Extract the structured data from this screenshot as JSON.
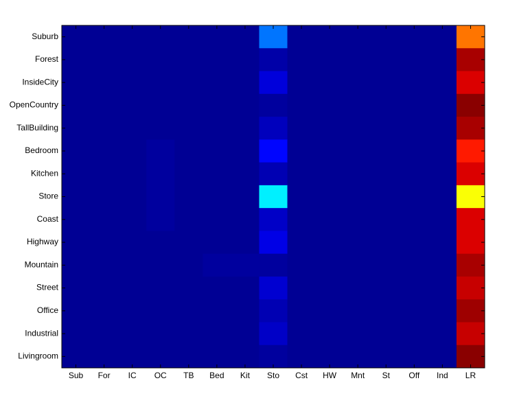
{
  "chart_data": {
    "type": "heatmap",
    "colormap": "jet",
    "clim": [
      0,
      1
    ],
    "x_categories": [
      "Sub",
      "For",
      "IC",
      "OC",
      "TB",
      "Bed",
      "Kit",
      "Sto",
      "Cst",
      "HW",
      "Mnt",
      "St",
      "Off",
      "Ind",
      "LR"
    ],
    "y_categories": [
      "Suburb",
      "Forest",
      "InsideCity",
      "OpenCountry",
      "TallBuilding",
      "Bedroom",
      "Kitchen",
      "Store",
      "Coast",
      "Highway",
      "Mountain",
      "Street",
      "Office",
      "Industrial",
      "Livingroom"
    ],
    "values": [
      [
        0.02,
        0.02,
        0.02,
        0.02,
        0.02,
        0.02,
        0.02,
        0.24,
        0.02,
        0.02,
        0.02,
        0.02,
        0.02,
        0.02,
        0.76
      ],
      [
        0.02,
        0.02,
        0.02,
        0.02,
        0.02,
        0.02,
        0.02,
        0.04,
        0.02,
        0.02,
        0.02,
        0.02,
        0.02,
        0.02,
        0.96
      ],
      [
        0.02,
        0.02,
        0.02,
        0.02,
        0.02,
        0.02,
        0.02,
        0.09,
        0.02,
        0.02,
        0.02,
        0.02,
        0.02,
        0.02,
        0.91
      ],
      [
        0.02,
        0.02,
        0.02,
        0.02,
        0.02,
        0.02,
        0.02,
        0.03,
        0.02,
        0.02,
        0.02,
        0.02,
        0.02,
        0.02,
        0.99
      ],
      [
        0.02,
        0.02,
        0.02,
        0.02,
        0.02,
        0.02,
        0.02,
        0.06,
        0.02,
        0.02,
        0.02,
        0.02,
        0.02,
        0.02,
        0.96
      ],
      [
        0.02,
        0.02,
        0.02,
        0.03,
        0.02,
        0.02,
        0.02,
        0.13,
        0.02,
        0.02,
        0.02,
        0.02,
        0.02,
        0.02,
        0.85
      ],
      [
        0.02,
        0.02,
        0.02,
        0.03,
        0.02,
        0.02,
        0.02,
        0.05,
        0.02,
        0.02,
        0.02,
        0.02,
        0.02,
        0.02,
        0.91
      ],
      [
        0.02,
        0.02,
        0.02,
        0.03,
        0.02,
        0.02,
        0.02,
        0.36,
        0.02,
        0.02,
        0.02,
        0.02,
        0.02,
        0.02,
        0.62
      ],
      [
        0.02,
        0.02,
        0.02,
        0.03,
        0.02,
        0.02,
        0.02,
        0.07,
        0.02,
        0.02,
        0.02,
        0.02,
        0.02,
        0.02,
        0.91
      ],
      [
        0.02,
        0.02,
        0.02,
        0.02,
        0.02,
        0.02,
        0.02,
        0.1,
        0.02,
        0.02,
        0.02,
        0.02,
        0.02,
        0.02,
        0.91
      ],
      [
        0.02,
        0.02,
        0.02,
        0.02,
        0.02,
        0.03,
        0.03,
        0.03,
        0.02,
        0.02,
        0.02,
        0.02,
        0.02,
        0.02,
        0.96
      ],
      [
        0.02,
        0.02,
        0.02,
        0.02,
        0.02,
        0.02,
        0.02,
        0.08,
        0.02,
        0.02,
        0.02,
        0.02,
        0.02,
        0.02,
        0.93
      ],
      [
        0.02,
        0.02,
        0.02,
        0.02,
        0.02,
        0.02,
        0.02,
        0.05,
        0.02,
        0.02,
        0.02,
        0.02,
        0.02,
        0.02,
        0.97
      ],
      [
        0.02,
        0.02,
        0.02,
        0.02,
        0.02,
        0.02,
        0.02,
        0.07,
        0.02,
        0.02,
        0.02,
        0.02,
        0.02,
        0.02,
        0.93
      ],
      [
        0.02,
        0.02,
        0.02,
        0.02,
        0.02,
        0.02,
        0.02,
        0.03,
        0.02,
        0.02,
        0.02,
        0.02,
        0.02,
        0.02,
        0.99
      ]
    ]
  }
}
